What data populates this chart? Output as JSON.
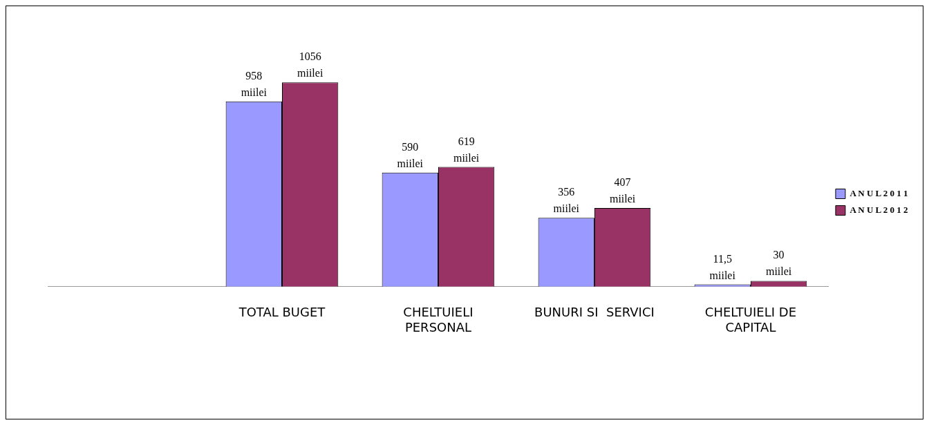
{
  "chart_data": {
    "type": "bar",
    "categories": [
      null,
      "TOTAL BUGET",
      "CHELTUIELI PERSONAL",
      "BUNURI SI  SERVICI",
      "CHELTUIELI DE CAPITAL"
    ],
    "series": [
      {
        "name": "A N U L 2 0 1 1",
        "color": "#9999ff",
        "values": [
          null,
          958,
          590,
          356,
          11.5
        ],
        "value_labels": [
          null,
          "958 miilei",
          "590 miilei",
          "356 miilei",
          "11,5 miilei"
        ]
      },
      {
        "name": "A N U L 2 0 1 2",
        "color": "#993366",
        "values": [
          null,
          1056,
          619,
          407,
          30
        ],
        "value_labels": [
          null,
          "1056 miilei",
          "619 miilei",
          "407 miilei",
          "30 miilei"
        ]
      }
    ],
    "legend": "right",
    "grid": false,
    "tick_labels": "x"
  }
}
